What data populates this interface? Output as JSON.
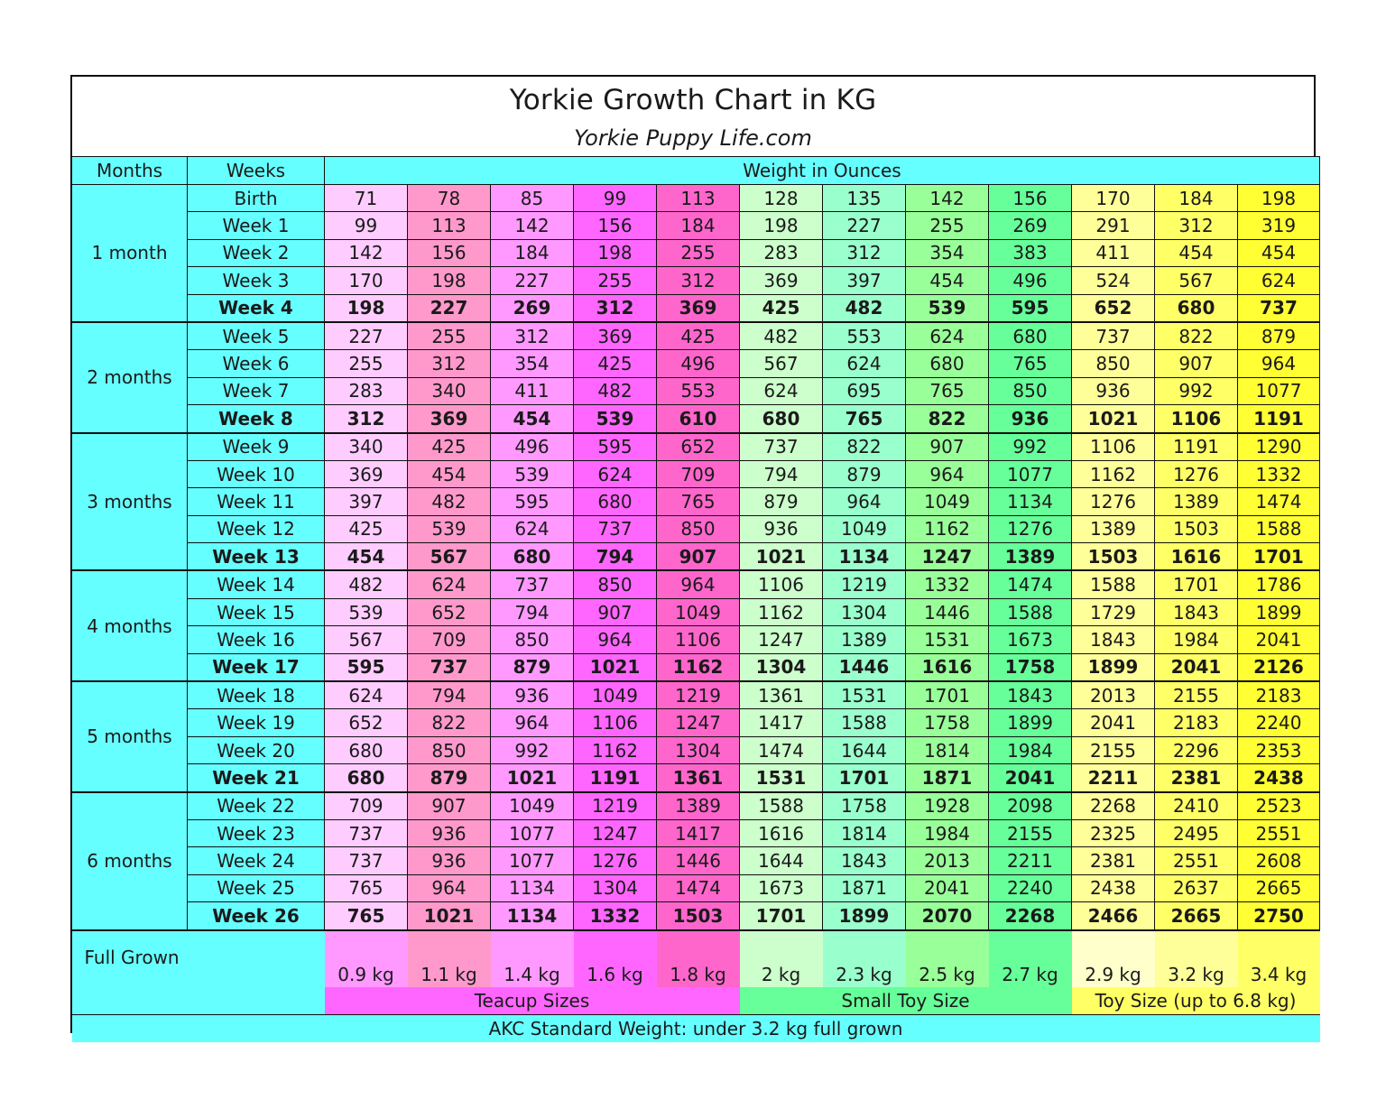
{
  "title": "Yorkie Growth Chart in KG",
  "subtitle": "Yorkie Puppy Life.com",
  "header": {
    "months": "Months",
    "weeks": "Weeks",
    "weight": "Weight in Ounces"
  },
  "months": [
    "1 month",
    "2 months",
    "3 months",
    "4 months",
    "5 months",
    "6 months"
  ],
  "month_rowspans": [
    5,
    4,
    5,
    4,
    4,
    5
  ],
  "weeks": [
    "Birth",
    "Week 1",
    "Week 2",
    "Week 3",
    "Week 4",
    "Week 5",
    "Week 6",
    "Week 7",
    "Week 8",
    "Week 9",
    "Week 10",
    "Week 11",
    "Week 12",
    "Week 13",
    "Week 14",
    "Week 15",
    "Week 16",
    "Week 17",
    "Week 18",
    "Week 19",
    "Week 20",
    "Week 21",
    "Week 22",
    "Week 23",
    "Week 24",
    "Week 25",
    "Week 26"
  ],
  "column_colors": [
    "#ffccff",
    "#ff99cc",
    "#ff99ff",
    "#ff66ff",
    "#ff66cc",
    "#ccffcc",
    "#99ffcc",
    "#99ff99",
    "#66ff99",
    "#ffff99",
    "#ffff66",
    "#ffff33"
  ],
  "full_grown_colors": [
    "#ff99ff",
    "#ff99cc",
    "#ff99ff",
    "#ff66ff",
    "#ff66cc",
    "#ccffcc",
    "#99ffcc",
    "#99ff99",
    "#66ff99",
    "#ffffcc",
    "#ffff99",
    "#ffff66"
  ],
  "bold_rows": [
    4,
    8,
    13,
    17,
    21,
    26
  ],
  "full_grown": {
    "label": "Full Grown",
    "values": [
      "0.9 kg",
      "1.1 kg",
      "1.4 kg",
      "1.6 kg",
      "1.8 kg",
      "2 kg",
      "2.3 kg",
      "2.5 kg",
      "2.7 kg",
      "2.9 kg",
      "3.2 kg",
      "3.4 kg"
    ]
  },
  "groups": [
    {
      "label": "Teacup Sizes",
      "span": 5,
      "color": "#ff66ff"
    },
    {
      "label": "Small Toy Size",
      "span": 4,
      "color": "#66ff99"
    },
    {
      "label": "Toy Size (up to 6.8 kg)",
      "span": 3,
      "color": "#ffff66"
    }
  ],
  "footer": "AKC Standard Weight: under 3.2 kg full grown",
  "chart_data": {
    "type": "table",
    "title": "Yorkie Growth Chart in KG",
    "columns": [
      "Months",
      "Weeks",
      "Weight in Ounces"
    ],
    "rows": [
      [
        "71",
        "78",
        "85",
        "99",
        "113",
        "128",
        "135",
        "142",
        "156",
        "170",
        "184",
        "198"
      ],
      [
        "99",
        "113",
        "142",
        "156",
        "184",
        "198",
        "227",
        "255",
        "269",
        "291",
        "312",
        "319"
      ],
      [
        "142",
        "156",
        "184",
        "198",
        "255",
        "283",
        "312",
        "354",
        "383",
        "411",
        "454",
        "454"
      ],
      [
        "170",
        "198",
        "227",
        "255",
        "312",
        "369",
        "397",
        "454",
        "496",
        "524",
        "567",
        "624"
      ],
      [
        "198",
        "227",
        "269",
        "312",
        "369",
        "425",
        "482",
        "539",
        "595",
        "652",
        "680",
        "737"
      ],
      [
        "227",
        "255",
        "312",
        "369",
        "425",
        "482",
        "553",
        "624",
        "680",
        "737",
        "822",
        "879"
      ],
      [
        "255",
        "312",
        "354",
        "425",
        "496",
        "567",
        "624",
        "680",
        "765",
        "850",
        "907",
        "964"
      ],
      [
        "283",
        "340",
        "411",
        "482",
        "553",
        "624",
        "695",
        "765",
        "850",
        "936",
        "992",
        "1077"
      ],
      [
        "312",
        "369",
        "454",
        "539",
        "610",
        "680",
        "765",
        "822",
        "936",
        "1021",
        "1106",
        "1191"
      ],
      [
        "340",
        "425",
        "496",
        "595",
        "652",
        "737",
        "822",
        "907",
        "992",
        "1106",
        "1191",
        "1290"
      ],
      [
        "369",
        "454",
        "539",
        "624",
        "709",
        "794",
        "879",
        "964",
        "1077",
        "1162",
        "1276",
        "1332"
      ],
      [
        "397",
        "482",
        "595",
        "680",
        "765",
        "879",
        "964",
        "1049",
        "1134",
        "1276",
        "1389",
        "1474"
      ],
      [
        "425",
        "539",
        "624",
        "737",
        "850",
        "936",
        "1049",
        "1162",
        "1276",
        "1389",
        "1503",
        "1588"
      ],
      [
        "454",
        "567",
        "680",
        "794",
        "907",
        "1021",
        "1134",
        "1247",
        "1389",
        "1503",
        "1616",
        "1701"
      ],
      [
        "482",
        "624",
        "737",
        "850",
        "964",
        "1106",
        "1219",
        "1332",
        "1474",
        "1588",
        "1701",
        "1786"
      ],
      [
        "539",
        "652",
        "794",
        "907",
        "1049",
        "1162",
        "1304",
        "1446",
        "1588",
        "1729",
        "1843",
        "1899"
      ],
      [
        "567",
        "709",
        "850",
        "964",
        "1106",
        "1247",
        "1389",
        "1531",
        "1673",
        "1843",
        "1984",
        "2041"
      ],
      [
        "595",
        "737",
        "879",
        "1021",
        "1162",
        "1304",
        "1446",
        "1616",
        "1758",
        "1899",
        "2041",
        "2126"
      ],
      [
        "624",
        "794",
        "936",
        "1049",
        "1219",
        "1361",
        "1531",
        "1701",
        "1843",
        "2013",
        "2155",
        "2183"
      ],
      [
        "652",
        "822",
        "964",
        "1106",
        "1247",
        "1417",
        "1588",
        "1758",
        "1899",
        "2041",
        "2183",
        "2240"
      ],
      [
        "680",
        "850",
        "992",
        "1162",
        "1304",
        "1474",
        "1644",
        "1814",
        "1984",
        "2155",
        "2296",
        "2353"
      ],
      [
        "680",
        "879",
        "1021",
        "1191",
        "1361",
        "1531",
        "1701",
        "1871",
        "2041",
        "2211",
        "2381",
        "2438"
      ],
      [
        "709",
        "907",
        "1049",
        "1219",
        "1389",
        "1588",
        "1758",
        "1928",
        "2098",
        "2268",
        "2410",
        "2523"
      ],
      [
        "737",
        "936",
        "1077",
        "1247",
        "1417",
        "1616",
        "1814",
        "1984",
        "2155",
        "2325",
        "2495",
        "2551"
      ],
      [
        "737",
        "936",
        "1077",
        "1276",
        "1446",
        "1644",
        "1843",
        "2013",
        "2211",
        "2381",
        "2551",
        "2608"
      ],
      [
        "765",
        "964",
        "1134",
        "1304",
        "1474",
        "1673",
        "1871",
        "2041",
        "2240",
        "2438",
        "2637",
        "2665"
      ],
      [
        "765",
        "1021",
        "1134",
        "1332",
        "1503",
        "1701",
        "1899",
        "2070",
        "2268",
        "2466",
        "2665",
        "2750"
      ]
    ]
  }
}
